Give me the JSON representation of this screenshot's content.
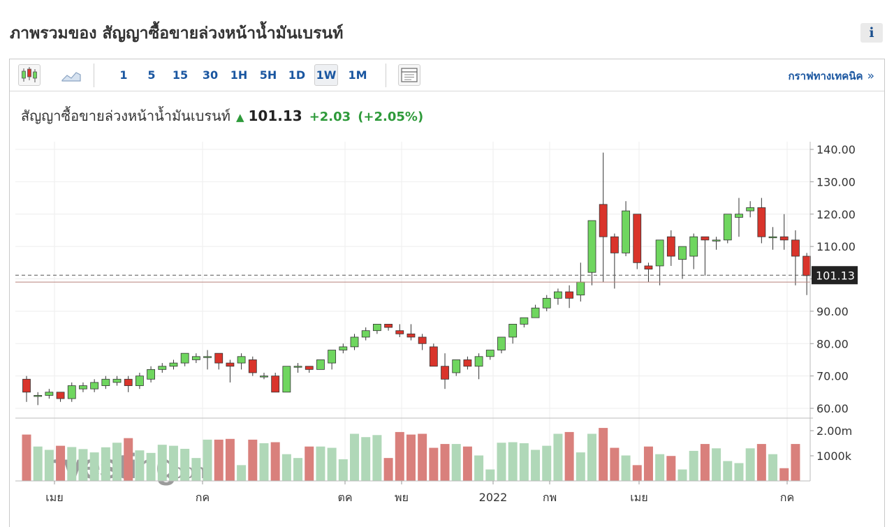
{
  "header": {
    "title": "ภาพรวมของ สัญญาซื้อขายล่วงหน้าน้ำมันเบรนท์",
    "info_label": "i"
  },
  "toolbar": {
    "chart_type_icons": [
      "candlestick-icon",
      "area-chart-icon"
    ],
    "timeframes": [
      "1",
      "5",
      "15",
      "30",
      "1H",
      "5H",
      "1D",
      "1W",
      "1M"
    ],
    "active_timeframe": "1W",
    "settings_icon": "indicator-panel-icon",
    "tech_link_label": "กราฟทางเทคนิค",
    "tech_link_arrow": "»"
  },
  "quote": {
    "name": "สัญญาซื้อขายล่วงหน้าน้ำมันเบรนท์",
    "price": "101.13",
    "change": "+2.03",
    "change_pct": "(+2.05%)"
  },
  "watermark": "Investing.com",
  "chart_data": {
    "type": "candlestick",
    "title": "",
    "y_ticks": [
      "140.00",
      "130.00",
      "120.00",
      "110.00",
      "100.00",
      "90.00",
      "80.00",
      "70.00",
      "60.00"
    ],
    "ylim": [
      57,
      142
    ],
    "last_price_label": "101.13",
    "volume_ticks": [
      "2.00m",
      "1000k"
    ],
    "x_labels": [
      "เมย",
      "กค",
      "ตค",
      "พย",
      "2022",
      "กพ",
      "เมย",
      "กค"
    ],
    "colors": {
      "up": "#6fd65f",
      "down": "#d9342b",
      "vol_up": "#b0d8b8",
      "vol_down": "#d9807c"
    },
    "candles": [
      [
        69,
        70,
        62,
        65,
        1.82
      ],
      [
        64,
        65,
        61,
        64,
        1.35
      ],
      [
        64,
        66,
        63,
        65,
        1.22
      ],
      [
        65,
        65,
        62,
        63,
        1.38
      ],
      [
        63,
        68,
        62,
        67,
        1.33
      ],
      [
        66,
        68,
        65,
        67,
        1.25
      ],
      [
        66,
        69,
        65,
        68,
        1.12
      ],
      [
        67,
        70,
        66,
        69,
        1.32
      ],
      [
        68,
        70,
        67,
        69,
        1.5
      ],
      [
        69,
        70,
        65,
        67,
        1.68
      ],
      [
        67,
        71,
        66,
        70,
        1.2
      ],
      [
        69,
        73,
        68,
        72,
        1.1
      ],
      [
        72,
        74,
        71,
        73,
        1.42
      ],
      [
        73,
        75,
        72,
        74,
        1.38
      ],
      [
        74,
        77,
        73,
        77,
        1.26
      ],
      [
        75,
        77,
        74,
        76,
        0.9
      ],
      [
        76,
        78,
        72,
        76,
        1.62
      ],
      [
        77,
        77,
        72,
        74,
        1.62
      ],
      [
        74,
        75,
        68,
        73,
        1.65
      ],
      [
        74,
        77,
        72,
        76,
        0.62
      ],
      [
        75,
        76,
        70,
        71,
        1.62
      ],
      [
        70,
        71,
        69,
        70,
        1.48
      ],
      [
        70,
        71,
        65,
        65,
        1.52
      ],
      [
        65,
        73,
        65,
        73,
        1.05
      ],
      [
        73,
        74,
        71,
        73,
        0.9
      ],
      [
        73,
        73,
        71,
        72,
        1.35
      ],
      [
        72,
        75,
        72,
        75,
        1.35
      ],
      [
        74,
        78,
        72,
        78,
        1.3
      ],
      [
        78,
        80,
        77,
        79,
        0.85
      ],
      [
        79,
        83,
        78,
        82,
        1.85
      ],
      [
        82,
        85,
        81,
        84,
        1.72
      ],
      [
        84,
        86,
        83,
        86,
        1.8
      ],
      [
        86,
        86,
        84,
        85,
        0.9
      ],
      [
        84,
        86,
        82,
        83,
        1.92
      ],
      [
        83,
        86,
        81,
        82,
        1.82
      ],
      [
        82,
        83,
        78,
        80,
        1.85
      ],
      [
        79,
        80,
        73,
        73,
        1.3
      ],
      [
        73,
        77,
        66,
        69,
        1.45
      ],
      [
        71,
        75,
        70,
        75,
        1.45
      ],
      [
        75,
        76,
        72,
        73,
        1.35
      ],
      [
        73,
        77,
        69,
        76,
        1.0
      ],
      [
        76,
        78,
        75,
        78,
        0.45
      ],
      [
        78,
        82,
        77,
        82,
        1.5
      ],
      [
        82,
        86,
        80,
        86,
        1.52
      ],
      [
        86,
        88,
        85,
        88,
        1.48
      ],
      [
        88,
        92,
        88,
        91,
        1.22
      ],
      [
        91,
        95,
        90,
        94,
        1.38
      ],
      [
        94,
        97,
        92,
        96,
        1.85
      ],
      [
        96,
        98,
        91,
        94,
        1.92
      ],
      [
        95,
        105,
        93,
        99,
        1.12
      ],
      [
        102,
        118,
        98,
        118,
        1.85
      ],
      [
        123,
        139,
        99,
        113,
        2.08
      ],
      [
        113,
        114,
        97,
        108,
        1.3
      ],
      [
        108,
        124,
        107,
        121,
        1.0
      ],
      [
        120,
        120,
        103,
        105,
        0.62
      ],
      [
        104,
        105,
        99,
        103,
        1.35
      ],
      [
        104,
        112,
        98,
        112,
        1.05
      ],
      [
        113,
        115,
        104,
        107,
        0.98
      ],
      [
        106,
        110,
        100,
        110,
        0.45
      ],
      [
        107,
        114,
        103,
        113,
        1.18
      ],
      [
        113,
        113,
        101,
        112,
        1.45
      ],
      [
        112,
        113,
        109,
        112,
        1.28
      ],
      [
        112,
        120,
        111,
        120,
        0.78
      ],
      [
        119,
        125,
        113,
        120,
        0.7
      ],
      [
        121,
        124,
        119,
        122,
        1.28
      ],
      [
        122,
        125,
        111,
        113,
        1.45
      ],
      [
        113,
        116,
        109,
        113,
        1.05
      ],
      [
        113,
        120,
        109,
        112,
        0.5
      ],
      [
        112,
        115,
        98,
        107,
        1.45
      ],
      [
        107,
        108,
        95,
        101,
        0.0
      ]
    ]
  }
}
